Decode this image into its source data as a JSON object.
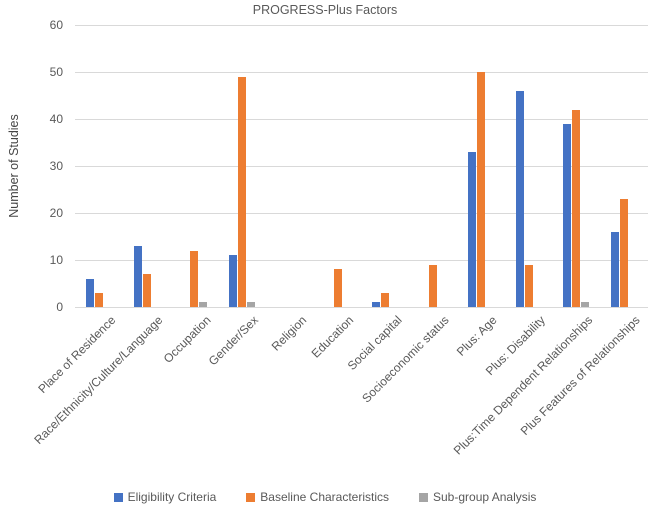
{
  "chart_data": {
    "type": "bar",
    "title": "PROGRESS-Plus Factors",
    "xlabel": "",
    "ylabel": "Number of Studies",
    "ylim": [
      0,
      60
    ],
    "yticks": [
      0,
      10,
      20,
      30,
      40,
      50,
      60
    ],
    "grid": true,
    "legend_position": "bottom",
    "categories": [
      "Place of Residence",
      "Race/Ethnicity/Culture/Language",
      "Occupation",
      "Gender/Sex",
      "Religion",
      "Education",
      "Social capital",
      "Socioeconomic status",
      "Plus: Age",
      "Plus: Disability",
      "Plus:Time Dependent Relationships",
      "Plus Features of Relationships"
    ],
    "series": [
      {
        "name": "Eligibility Criteria",
        "color": "#4472C4",
        "values": [
          6,
          13,
          0,
          11,
          0,
          0,
          1,
          0,
          33,
          46,
          39,
          16
        ]
      },
      {
        "name": "Baseline Characteristics",
        "color": "#ED7D31",
        "values": [
          3,
          7,
          12,
          49,
          0,
          8,
          3,
          9,
          50,
          9,
          42,
          23
        ]
      },
      {
        "name": "Sub-group Analysis",
        "color": "#A5A5A5",
        "values": [
          0,
          0,
          1,
          1,
          0,
          0,
          0,
          0,
          0,
          0,
          1,
          0
        ]
      }
    ]
  },
  "colors": {
    "grid": "#d9d9d9",
    "text": "#595959",
    "background": "#ffffff"
  }
}
